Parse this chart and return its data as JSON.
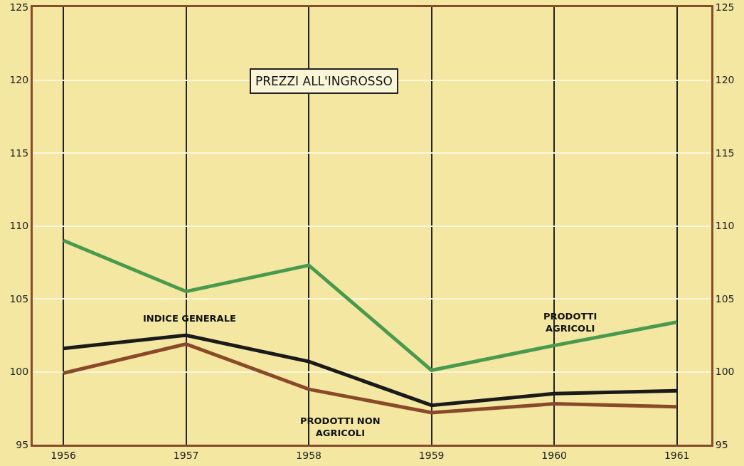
{
  "chart_data": {
    "type": "line",
    "title": "PREZZI ALL'INGROSSO",
    "x": [
      1956,
      1957,
      1958,
      1959,
      1960,
      1961
    ],
    "xlim": [
      1955.75,
      1961.28
    ],
    "xticks": [
      1956,
      1957,
      1958,
      1959,
      1960,
      1961
    ],
    "ylim": [
      95,
      125
    ],
    "yticks": [
      95,
      100,
      105,
      110,
      115,
      120,
      125
    ],
    "y2lim": [
      95,
      125
    ],
    "y2ticks": [
      95,
      100,
      105,
      110,
      115,
      120,
      125
    ],
    "grid": true,
    "legend": false,
    "marker": "none",
    "line_style": "solid",
    "series": [
      {
        "name": "PRODOTTI AGRICOLI",
        "color": "#4a9a4e",
        "values": [
          109.0,
          105.5,
          107.3,
          100.1,
          101.8,
          103.4
        ]
      },
      {
        "name": "INDICE GENERALE",
        "color": "#1a1a1a",
        "values": [
          101.6,
          102.5,
          100.7,
          97.7,
          98.5,
          98.7
        ]
      },
      {
        "name": "PRODOTTI NON AGRICOLI",
        "color": "#8a4a2a",
        "values": [
          99.9,
          101.9,
          98.8,
          97.2,
          97.8,
          97.6
        ]
      }
    ]
  }
}
